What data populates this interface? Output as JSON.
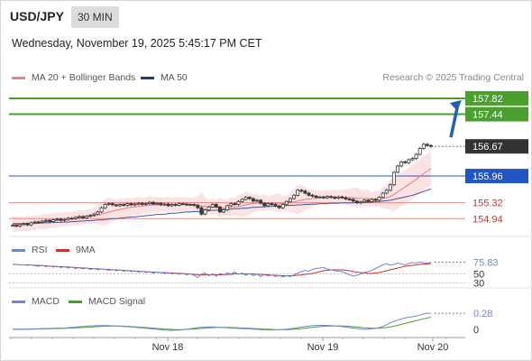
{
  "header": {
    "symbol": "USD/JPY",
    "timeframe": "30 MIN",
    "datetime": "Wednesday, November 19, 2025 5:45:17 PM CET",
    "credit": "Research © 2025 Trading Central"
  },
  "legend": {
    "ma20_label": "MA 20 + Bollinger Bands",
    "ma50_label": "MA 50",
    "rsi_label": "RSI",
    "rsi_ma_label": "9MA",
    "macd_label": "MACD",
    "macd_signal_label": "MACD Signal"
  },
  "colors": {
    "ma20": "#e87d7d",
    "bollinger_fill": "#fbdada",
    "ma50": "#3a5a9b",
    "support_line": "#2155c4",
    "level_line": "#e88a8a",
    "target_line": "#4aa02c",
    "arrow": "#2060b0",
    "current_badge": "#333333",
    "candle": "#3a3a3a",
    "rsi": "#6f86d6",
    "rsi_ma": "#d03030",
    "macd": "#6f86d6",
    "macd_signal": "#4aa02c"
  },
  "chart_data": [
    {
      "type": "candlestick",
      "title": "USD/JPY",
      "x_ticks": [
        "Nov 18",
        "Nov 19",
        "Nov 20"
      ],
      "ylim": [
        154.6,
        158.1
      ],
      "levels": [
        {
          "label": "157.82",
          "value": 157.82,
          "kind": "target"
        },
        {
          "label": "157.44",
          "value": 157.44,
          "kind": "target"
        },
        {
          "label": "156.67",
          "value": 156.67,
          "kind": "current"
        },
        {
          "label": "155.96",
          "value": 155.96,
          "kind": "support"
        },
        {
          "label": "155.32",
          "value": 155.32,
          "kind": "level"
        },
        {
          "label": "154.94",
          "value": 154.94,
          "kind": "level"
        }
      ],
      "close": [
        154.78,
        154.76,
        154.8,
        154.82,
        154.79,
        154.84,
        154.86,
        154.85,
        154.88,
        154.9,
        154.87,
        154.91,
        154.93,
        154.9,
        154.92,
        154.95,
        154.94,
        154.97,
        154.99,
        154.96,
        155.0,
        155.02,
        155.05,
        155.1,
        155.2,
        155.28,
        155.3,
        155.27,
        155.25,
        155.28,
        155.26,
        155.3,
        155.27,
        155.29,
        155.31,
        155.28,
        155.3,
        155.33,
        155.29,
        155.31,
        155.27,
        155.29,
        155.25,
        155.28,
        155.26,
        155.3,
        155.29,
        155.27,
        155.28,
        155.26,
        155.2,
        155.05,
        155.15,
        155.22,
        155.28,
        155.22,
        155.1,
        155.15,
        155.25,
        155.3,
        155.28,
        155.35,
        155.4,
        155.45,
        155.42,
        155.36,
        155.38,
        155.31,
        155.25,
        155.3,
        155.28,
        155.24,
        155.2,
        155.28,
        155.35,
        155.42,
        155.5,
        155.62,
        155.6,
        155.55,
        155.5,
        155.48,
        155.45,
        155.46,
        155.44,
        155.47,
        155.45,
        155.43,
        155.46,
        155.44,
        155.41,
        155.4,
        155.36,
        155.32,
        155.34,
        155.38,
        155.35,
        155.4,
        155.38,
        155.45,
        155.55,
        155.62,
        155.75,
        156.05,
        156.2,
        156.3,
        156.28,
        156.35,
        156.38,
        156.48,
        156.62,
        156.72,
        156.69,
        156.67
      ],
      "ma20": [
        154.8,
        154.8,
        154.81,
        154.81,
        154.82,
        154.83,
        154.84,
        154.85,
        154.86,
        154.87,
        154.88,
        154.89,
        154.9,
        154.91,
        154.92,
        154.93,
        154.94,
        154.95,
        154.96,
        154.97,
        154.98,
        154.99,
        155.0,
        155.02,
        155.04,
        155.07,
        155.1,
        155.12,
        155.14,
        155.16,
        155.18,
        155.2,
        155.21,
        155.22,
        155.23,
        155.24,
        155.25,
        155.26,
        155.27,
        155.27,
        155.28,
        155.28,
        155.28,
        155.28,
        155.28,
        155.28,
        155.28,
        155.28,
        155.28,
        155.27,
        155.26,
        155.24,
        155.23,
        155.22,
        155.22,
        155.21,
        155.2,
        155.2,
        155.2,
        155.21,
        155.22,
        155.23,
        155.25,
        155.27,
        155.29,
        155.3,
        155.31,
        155.31,
        155.31,
        155.31,
        155.31,
        155.31,
        155.3,
        155.3,
        155.31,
        155.32,
        155.34,
        155.36,
        155.38,
        155.4,
        155.41,
        155.42,
        155.43,
        155.44,
        155.45,
        155.45,
        155.46,
        155.46,
        155.46,
        155.46,
        155.45,
        155.45,
        155.44,
        155.43,
        155.42,
        155.42,
        155.42,
        155.41,
        155.41,
        155.41,
        155.42,
        155.44,
        155.47,
        155.52,
        155.58,
        155.64,
        155.7,
        155.76,
        155.82,
        155.88,
        155.95,
        156.02,
        156.08,
        156.14
      ],
      "ma50": [
        154.82,
        154.82,
        154.82,
        154.82,
        154.83,
        154.83,
        154.83,
        154.83,
        154.84,
        154.84,
        154.84,
        154.85,
        154.85,
        154.85,
        154.86,
        154.86,
        154.87,
        154.87,
        154.88,
        154.88,
        154.89,
        154.89,
        154.9,
        154.91,
        154.91,
        154.92,
        154.93,
        154.94,
        154.94,
        154.95,
        154.96,
        154.97,
        154.98,
        154.98,
        154.99,
        155.0,
        155.01,
        155.02,
        155.03,
        155.04,
        155.04,
        155.05,
        155.06,
        155.07,
        155.07,
        155.08,
        155.09,
        155.1,
        155.1,
        155.11,
        155.11,
        155.12,
        155.12,
        155.13,
        155.14,
        155.14,
        155.15,
        155.16,
        155.16,
        155.17,
        155.18,
        155.18,
        155.19,
        155.19,
        155.2,
        155.21,
        155.21,
        155.22,
        155.22,
        155.23,
        155.23,
        155.24,
        155.24,
        155.25,
        155.25,
        155.26,
        155.26,
        155.27,
        155.27,
        155.28,
        155.28,
        155.29,
        155.29,
        155.3,
        155.3,
        155.3,
        155.31,
        155.31,
        155.31,
        155.32,
        155.32,
        155.32,
        155.32,
        155.33,
        155.33,
        155.33,
        155.33,
        155.34,
        155.34,
        155.35,
        155.36,
        155.37,
        155.38,
        155.4,
        155.42,
        155.44,
        155.46,
        155.48,
        155.5,
        155.53,
        155.56,
        155.59,
        155.62,
        155.65
      ]
    },
    {
      "type": "line",
      "title": "RSI",
      "ylim": [
        25,
        85
      ],
      "y_ticks": [
        "75.83",
        "50",
        "30"
      ],
      "series": [
        {
          "name": "RSI",
          "values": [
            72,
            71,
            70,
            70,
            69,
            70,
            68,
            67,
            69,
            66,
            68,
            65,
            67,
            64,
            66,
            63,
            65,
            62,
            64,
            61,
            63,
            60,
            62,
            59,
            61,
            60,
            58,
            60,
            57,
            59,
            56,
            58,
            55,
            57,
            54,
            56,
            53,
            55,
            52,
            54,
            53,
            51,
            53,
            50,
            52,
            49,
            51,
            48,
            50,
            47,
            42,
            49,
            52,
            46,
            50,
            45,
            51,
            48,
            52,
            50,
            54,
            49,
            52,
            47,
            51,
            46,
            50,
            44,
            49,
            45,
            48,
            44,
            47,
            43,
            46,
            44,
            48,
            52,
            55,
            58,
            56,
            60,
            62,
            63,
            64,
            61,
            59,
            57,
            56,
            55,
            52,
            48,
            45,
            47,
            50,
            53,
            55,
            58,
            62,
            66,
            70,
            73,
            69,
            71,
            74,
            72,
            70,
            73,
            75,
            74,
            76,
            75,
            74,
            75.83
          ]
        },
        {
          "name": "9MA",
          "values": [
            71,
            71,
            70,
            70,
            70,
            70,
            69,
            69,
            68,
            68,
            67,
            67,
            66,
            66,
            66,
            65,
            65,
            64,
            64,
            63,
            63,
            62,
            62,
            61,
            61,
            60,
            60,
            59,
            59,
            58,
            58,
            57,
            57,
            56,
            56,
            55,
            55,
            54,
            54,
            54,
            53,
            53,
            52,
            52,
            52,
            51,
            51,
            50,
            50,
            49,
            48,
            48,
            48,
            48,
            48,
            48,
            48,
            48,
            49,
            49,
            50,
            50,
            50,
            50,
            50,
            50,
            49,
            49,
            48,
            48,
            47,
            47,
            46,
            46,
            46,
            46,
            46,
            47,
            48,
            49,
            50,
            51,
            53,
            55,
            57,
            58,
            59,
            59,
            59,
            59,
            58,
            57,
            55,
            54,
            53,
            52,
            51,
            51,
            52,
            53,
            55,
            57,
            59,
            61,
            63,
            65,
            67,
            68,
            69,
            70,
            71,
            72,
            72,
            73
          ]
        }
      ]
    },
    {
      "type": "line",
      "title": "MACD",
      "ylim": [
        -0.08,
        0.36
      ],
      "y_ticks": [
        "0.28",
        "0"
      ],
      "series": [
        {
          "name": "MACD",
          "values": [
            0,
            0.001,
            0.002,
            0.003,
            0.004,
            0.006,
            0.008,
            0.01,
            0.012,
            0.014,
            0.016,
            0.018,
            0.02,
            0.022,
            0.024,
            0.028,
            0.034,
            0.04,
            0.046,
            0.05,
            0.056,
            0.06,
            0.062,
            0.064,
            0.066,
            0.066,
            0.064,
            0.062,
            0.058,
            0.054,
            0.05,
            0.046,
            0.042,
            0.036,
            0.03,
            0.024,
            0.018,
            0.012,
            0.006,
            0,
            -0.006,
            -0.012,
            -0.016,
            -0.018,
            -0.016,
            -0.012,
            -0.006,
            0.002,
            0.01,
            0.02,
            0.03,
            0.036,
            0.04,
            0.042,
            0.042,
            0.04,
            0.036,
            0.03,
            0.026,
            0.022,
            0.018,
            0.016,
            0.012,
            0.01,
            0.008,
            0.004,
            0,
            -0.004,
            -0.008,
            -0.01,
            -0.012,
            -0.01,
            -0.006,
            -0.002,
            0.004,
            0.01,
            0.018,
            0.028,
            0.04,
            0.05,
            0.058,
            0.064,
            0.068,
            0.07,
            0.07,
            0.068,
            0.064,
            0.06,
            0.054,
            0.048,
            0.04,
            0.03,
            0.022,
            0.014,
            0.006,
            0,
            0.004,
            0.01,
            0.018,
            0.03,
            0.05,
            0.08,
            0.11,
            0.14,
            0.16,
            0.18,
            0.2,
            0.21,
            0.22,
            0.23,
            0.25,
            0.27,
            0.28,
            0.28
          ]
        },
        {
          "name": "MACD Signal",
          "values": [
            0,
            0.001,
            0.001,
            0.002,
            0.003,
            0.004,
            0.005,
            0.006,
            0.008,
            0.009,
            0.011,
            0.012,
            0.014,
            0.016,
            0.018,
            0.02,
            0.022,
            0.025,
            0.028,
            0.032,
            0.036,
            0.04,
            0.044,
            0.048,
            0.052,
            0.055,
            0.057,
            0.058,
            0.058,
            0.057,
            0.055,
            0.052,
            0.048,
            0.044,
            0.04,
            0.035,
            0.03,
            0.025,
            0.02,
            0.015,
            0.01,
            0.005,
            0.001,
            -0.002,
            -0.004,
            -0.004,
            -0.003,
            -0.001,
            0.002,
            0.006,
            0.011,
            0.016,
            0.021,
            0.026,
            0.03,
            0.033,
            0.034,
            0.034,
            0.033,
            0.031,
            0.029,
            0.026,
            0.023,
            0.02,
            0.017,
            0.014,
            0.011,
            0.008,
            0.004,
            0.001,
            -0.002,
            -0.004,
            -0.005,
            -0.005,
            -0.004,
            -0.002,
            0.002,
            0.007,
            0.013,
            0.02,
            0.028,
            0.035,
            0.042,
            0.048,
            0.053,
            0.057,
            0.059,
            0.06,
            0.06,
            0.058,
            0.055,
            0.051,
            0.046,
            0.04,
            0.034,
            0.028,
            0.024,
            0.021,
            0.02,
            0.021,
            0.025,
            0.032,
            0.042,
            0.055,
            0.07,
            0.086,
            0.102,
            0.118,
            0.134,
            0.15,
            0.166,
            0.182,
            0.198,
            0.214
          ]
        }
      ]
    }
  ]
}
